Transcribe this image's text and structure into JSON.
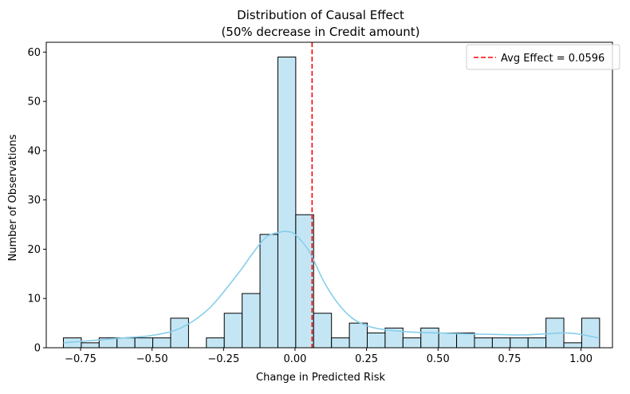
{
  "chart_data": {
    "type": "bar",
    "title": "Distribution of Causal Effect",
    "subtitle": "(50% decrease in Credit amount)",
    "xlabel": "Change in Predicted Risk",
    "ylabel": "Number of Observations",
    "xlim": [
      -0.87,
      1.11
    ],
    "ylim": [
      0,
      62
    ],
    "x_ticks": [
      -0.75,
      -0.5,
      -0.25,
      0.0,
      0.25,
      0.5,
      0.75,
      1.0
    ],
    "x_tick_labels": [
      "−0.75",
      "−0.50",
      "−0.25",
      "0.00",
      "0.25",
      "0.50",
      "0.75",
      "1.00"
    ],
    "y_ticks": [
      0,
      10,
      20,
      30,
      40,
      50,
      60
    ],
    "y_tick_labels": [
      "0",
      "10",
      "20",
      "30",
      "40",
      "50",
      "60"
    ],
    "grid": false,
    "legend_position": "top-right",
    "bin_start": -0.81,
    "bin_width": 0.0625,
    "counts": [
      2,
      1,
      2,
      2,
      2,
      2,
      6,
      0,
      2,
      7,
      11,
      23,
      59,
      27,
      7,
      2,
      5,
      3,
      4,
      2,
      4,
      3,
      3,
      2,
      2,
      2,
      2,
      6,
      1,
      6
    ],
    "kde": {
      "x": [
        -0.81,
        -0.7,
        -0.6,
        -0.5,
        -0.4,
        -0.3,
        -0.2,
        -0.15,
        -0.1,
        -0.05,
        -0.03,
        0.0,
        0.05,
        0.1,
        0.15,
        0.2,
        0.25,
        0.3,
        0.4,
        0.5,
        0.6,
        0.7,
        0.8,
        0.9,
        0.95,
        1.0,
        1.06
      ],
      "y": [
        1.0,
        1.5,
        2.0,
        2.5,
        4.0,
        8.0,
        15.0,
        19.0,
        22.5,
        23.5,
        23.6,
        23.0,
        19.5,
        13.5,
        9.0,
        6.0,
        4.5,
        3.8,
        3.2,
        3.0,
        2.8,
        2.7,
        2.6,
        2.9,
        3.0,
        2.7,
        2.0
      ]
    },
    "avg_effect": 0.0596,
    "legend_label": "Avg Effect = 0.0596",
    "colors": {
      "bar_fill": "#c4e6f4",
      "bar_edge": "#000000",
      "kde_line": "#87ceeb",
      "avg_line": "#ff0000"
    }
  }
}
